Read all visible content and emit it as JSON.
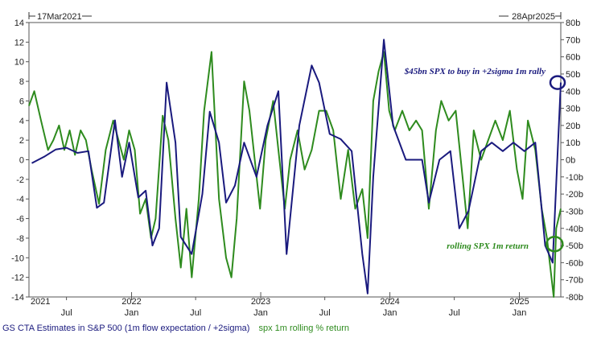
{
  "chart_data": {
    "type": "line",
    "header_left": "17Mar2021",
    "header_right": "28Apr2025",
    "x_ticks_major": [
      "2021",
      "2022",
      "2023",
      "2024",
      "2025"
    ],
    "x_ticks_minor": [
      "Jul",
      "Jan",
      "Jul",
      "Jan",
      "Jul",
      "Jan",
      "Jul",
      "Jan"
    ],
    "x_range": [
      "2021-03-17",
      "2025-04-28"
    ],
    "y_left": {
      "ticks": [
        "14",
        "12",
        "10",
        "8",
        "6",
        "4",
        "2",
        "0",
        "-2",
        "-4",
        "-6",
        "-8",
        "-10",
        "-12",
        "-14"
      ],
      "range": [
        -14,
        14
      ]
    },
    "y_right": {
      "ticks": [
        "80b",
        "70b",
        "60b",
        "50b",
        "40b",
        "30b",
        "20b",
        "10b",
        "0b",
        "-10b",
        "-20b",
        "-30b",
        "-40b",
        "-50b",
        "-60b",
        "-70b",
        "-80b"
      ],
      "range": [
        -80,
        80
      ],
      "unit": "b"
    },
    "series": [
      {
        "name": "GS CTA Estimates in S&P 500 (1m flow expectation / +2sigma)",
        "color": "#1a1a7e",
        "axis": "right",
        "points": [
          [
            "2021-03-25",
            -2
          ],
          [
            "2021-05-01",
            2
          ],
          [
            "2021-06-01",
            6
          ],
          [
            "2021-07-01",
            7
          ],
          [
            "2021-08-01",
            4
          ],
          [
            "2021-09-01",
            5
          ],
          [
            "2021-09-25",
            -28
          ],
          [
            "2021-10-15",
            -25
          ],
          [
            "2021-11-15",
            23
          ],
          [
            "2021-12-05",
            -10
          ],
          [
            "2021-12-25",
            10
          ],
          [
            "2022-01-20",
            -22
          ],
          [
            "2022-02-10",
            -18
          ],
          [
            "2022-03-01",
            -50
          ],
          [
            "2022-03-20",
            -40
          ],
          [
            "2022-04-10",
            45
          ],
          [
            "2022-05-05",
            10
          ],
          [
            "2022-05-20",
            -45
          ],
          [
            "2022-06-20",
            -55
          ],
          [
            "2022-07-20",
            -20
          ],
          [
            "2022-08-10",
            28
          ],
          [
            "2022-09-05",
            10
          ],
          [
            "2022-09-25",
            -25
          ],
          [
            "2022-10-20",
            -15
          ],
          [
            "2022-11-15",
            10
          ],
          [
            "2022-12-20",
            -10
          ],
          [
            "2023-01-20",
            20
          ],
          [
            "2023-02-20",
            40
          ],
          [
            "2023-03-15",
            -55
          ],
          [
            "2023-04-20",
            20
          ],
          [
            "2023-05-25",
            55
          ],
          [
            "2023-06-15",
            45
          ],
          [
            "2023-07-15",
            15
          ],
          [
            "2023-08-15",
            12
          ],
          [
            "2023-09-15",
            5
          ],
          [
            "2023-10-15",
            -55
          ],
          [
            "2023-10-30",
            -78
          ],
          [
            "2023-11-15",
            -10
          ],
          [
            "2023-12-15",
            70
          ],
          [
            "2024-01-10",
            20
          ],
          [
            "2024-02-15",
            0
          ],
          [
            "2024-04-01",
            0
          ],
          [
            "2024-04-20",
            -25
          ],
          [
            "2024-05-20",
            0
          ],
          [
            "2024-06-20",
            5
          ],
          [
            "2024-07-15",
            -40
          ],
          [
            "2024-08-10",
            -30
          ],
          [
            "2024-09-15",
            5
          ],
          [
            "2024-10-15",
            10
          ],
          [
            "2024-11-15",
            5
          ],
          [
            "2024-12-15",
            10
          ],
          [
            "2025-01-15",
            5
          ],
          [
            "2025-02-15",
            10
          ],
          [
            "2025-03-15",
            -50
          ],
          [
            "2025-04-05",
            -60
          ],
          [
            "2025-04-28",
            45
          ]
        ]
      },
      {
        "name": "spx 1m rolling % return",
        "color": "#2e8b1e",
        "axis": "left",
        "points": [
          [
            "2021-03-17",
            5.5
          ],
          [
            "2021-04-01",
            7
          ],
          [
            "2021-04-20",
            4
          ],
          [
            "2021-05-10",
            1
          ],
          [
            "2021-05-25",
            2
          ],
          [
            "2021-06-10",
            3.5
          ],
          [
            "2021-06-25",
            1
          ],
          [
            "2021-07-10",
            3
          ],
          [
            "2021-07-25",
            0.5
          ],
          [
            "2021-08-10",
            3
          ],
          [
            "2021-08-25",
            2
          ],
          [
            "2021-09-10",
            -1
          ],
          [
            "2021-10-01",
            -4.5
          ],
          [
            "2021-10-20",
            1
          ],
          [
            "2021-11-10",
            4
          ],
          [
            "2021-11-25",
            2
          ],
          [
            "2021-12-10",
            0
          ],
          [
            "2021-12-25",
            3
          ],
          [
            "2022-01-10",
            1
          ],
          [
            "2022-01-25",
            -5.5
          ],
          [
            "2022-02-10",
            -4
          ],
          [
            "2022-02-25",
            -8
          ],
          [
            "2022-03-10",
            -6
          ],
          [
            "2022-03-30",
            4.5
          ],
          [
            "2022-04-15",
            2
          ],
          [
            "2022-05-05",
            -6
          ],
          [
            "2022-05-20",
            -11
          ],
          [
            "2022-06-05",
            -5
          ],
          [
            "2022-06-20",
            -12
          ],
          [
            "2022-07-10",
            -4
          ],
          [
            "2022-07-25",
            5
          ],
          [
            "2022-08-15",
            11
          ],
          [
            "2022-09-05",
            -4
          ],
          [
            "2022-09-25",
            -10
          ],
          [
            "2022-10-10",
            -12
          ],
          [
            "2022-10-25",
            -6
          ],
          [
            "2022-11-15",
            8
          ],
          [
            "2022-11-30",
            5
          ],
          [
            "2022-12-15",
            0
          ],
          [
            "2022-12-30",
            -5
          ],
          [
            "2023-01-15",
            2
          ],
          [
            "2023-02-05",
            6
          ],
          [
            "2023-02-20",
            1
          ],
          [
            "2023-03-10",
            -5
          ],
          [
            "2023-03-25",
            0
          ],
          [
            "2023-04-15",
            3
          ],
          [
            "2023-05-05",
            -1
          ],
          [
            "2023-05-25",
            1
          ],
          [
            "2023-06-15",
            5
          ],
          [
            "2023-07-05",
            5
          ],
          [
            "2023-07-25",
            3
          ],
          [
            "2023-08-15",
            -4
          ],
          [
            "2023-09-05",
            1
          ],
          [
            "2023-09-25",
            -5
          ],
          [
            "2023-10-15",
            -3
          ],
          [
            "2023-10-30",
            -8
          ],
          [
            "2023-11-15",
            6
          ],
          [
            "2023-11-30",
            9
          ],
          [
            "2023-12-15",
            11
          ],
          [
            "2023-12-30",
            5
          ],
          [
            "2024-01-15",
            3
          ],
          [
            "2024-02-05",
            5
          ],
          [
            "2024-02-25",
            3
          ],
          [
            "2024-03-15",
            4
          ],
          [
            "2024-04-01",
            3
          ],
          [
            "2024-04-20",
            -5
          ],
          [
            "2024-05-10",
            3
          ],
          [
            "2024-05-25",
            6
          ],
          [
            "2024-06-15",
            4
          ],
          [
            "2024-07-05",
            5
          ],
          [
            "2024-07-25",
            -2
          ],
          [
            "2024-08-08",
            -7
          ],
          [
            "2024-08-25",
            3
          ],
          [
            "2024-09-15",
            0
          ],
          [
            "2024-10-05",
            2
          ],
          [
            "2024-10-25",
            4
          ],
          [
            "2024-11-15",
            2
          ],
          [
            "2024-12-05",
            5
          ],
          [
            "2024-12-25",
            -1
          ],
          [
            "2025-01-10",
            -4
          ],
          [
            "2025-01-25",
            4
          ],
          [
            "2025-02-15",
            1
          ],
          [
            "2025-03-05",
            -5
          ],
          [
            "2025-03-20",
            -8
          ],
          [
            "2025-04-08",
            -14
          ],
          [
            "2025-04-15",
            -7
          ],
          [
            "2025-04-28",
            -5
          ]
        ]
      }
    ],
    "annotations": [
      {
        "text": "$45bn SPX to buy in +2sigma 1m rally",
        "color": "#1a1a7e"
      },
      {
        "text": "rolling SPX 1m return",
        "color": "#2e8b1e"
      }
    ],
    "grid": false
  },
  "legend": {
    "blue": "GS CTA Estimates in S&P 500 (1m flow expectation / +2sigma)",
    "green": "spx 1m rolling % return"
  }
}
